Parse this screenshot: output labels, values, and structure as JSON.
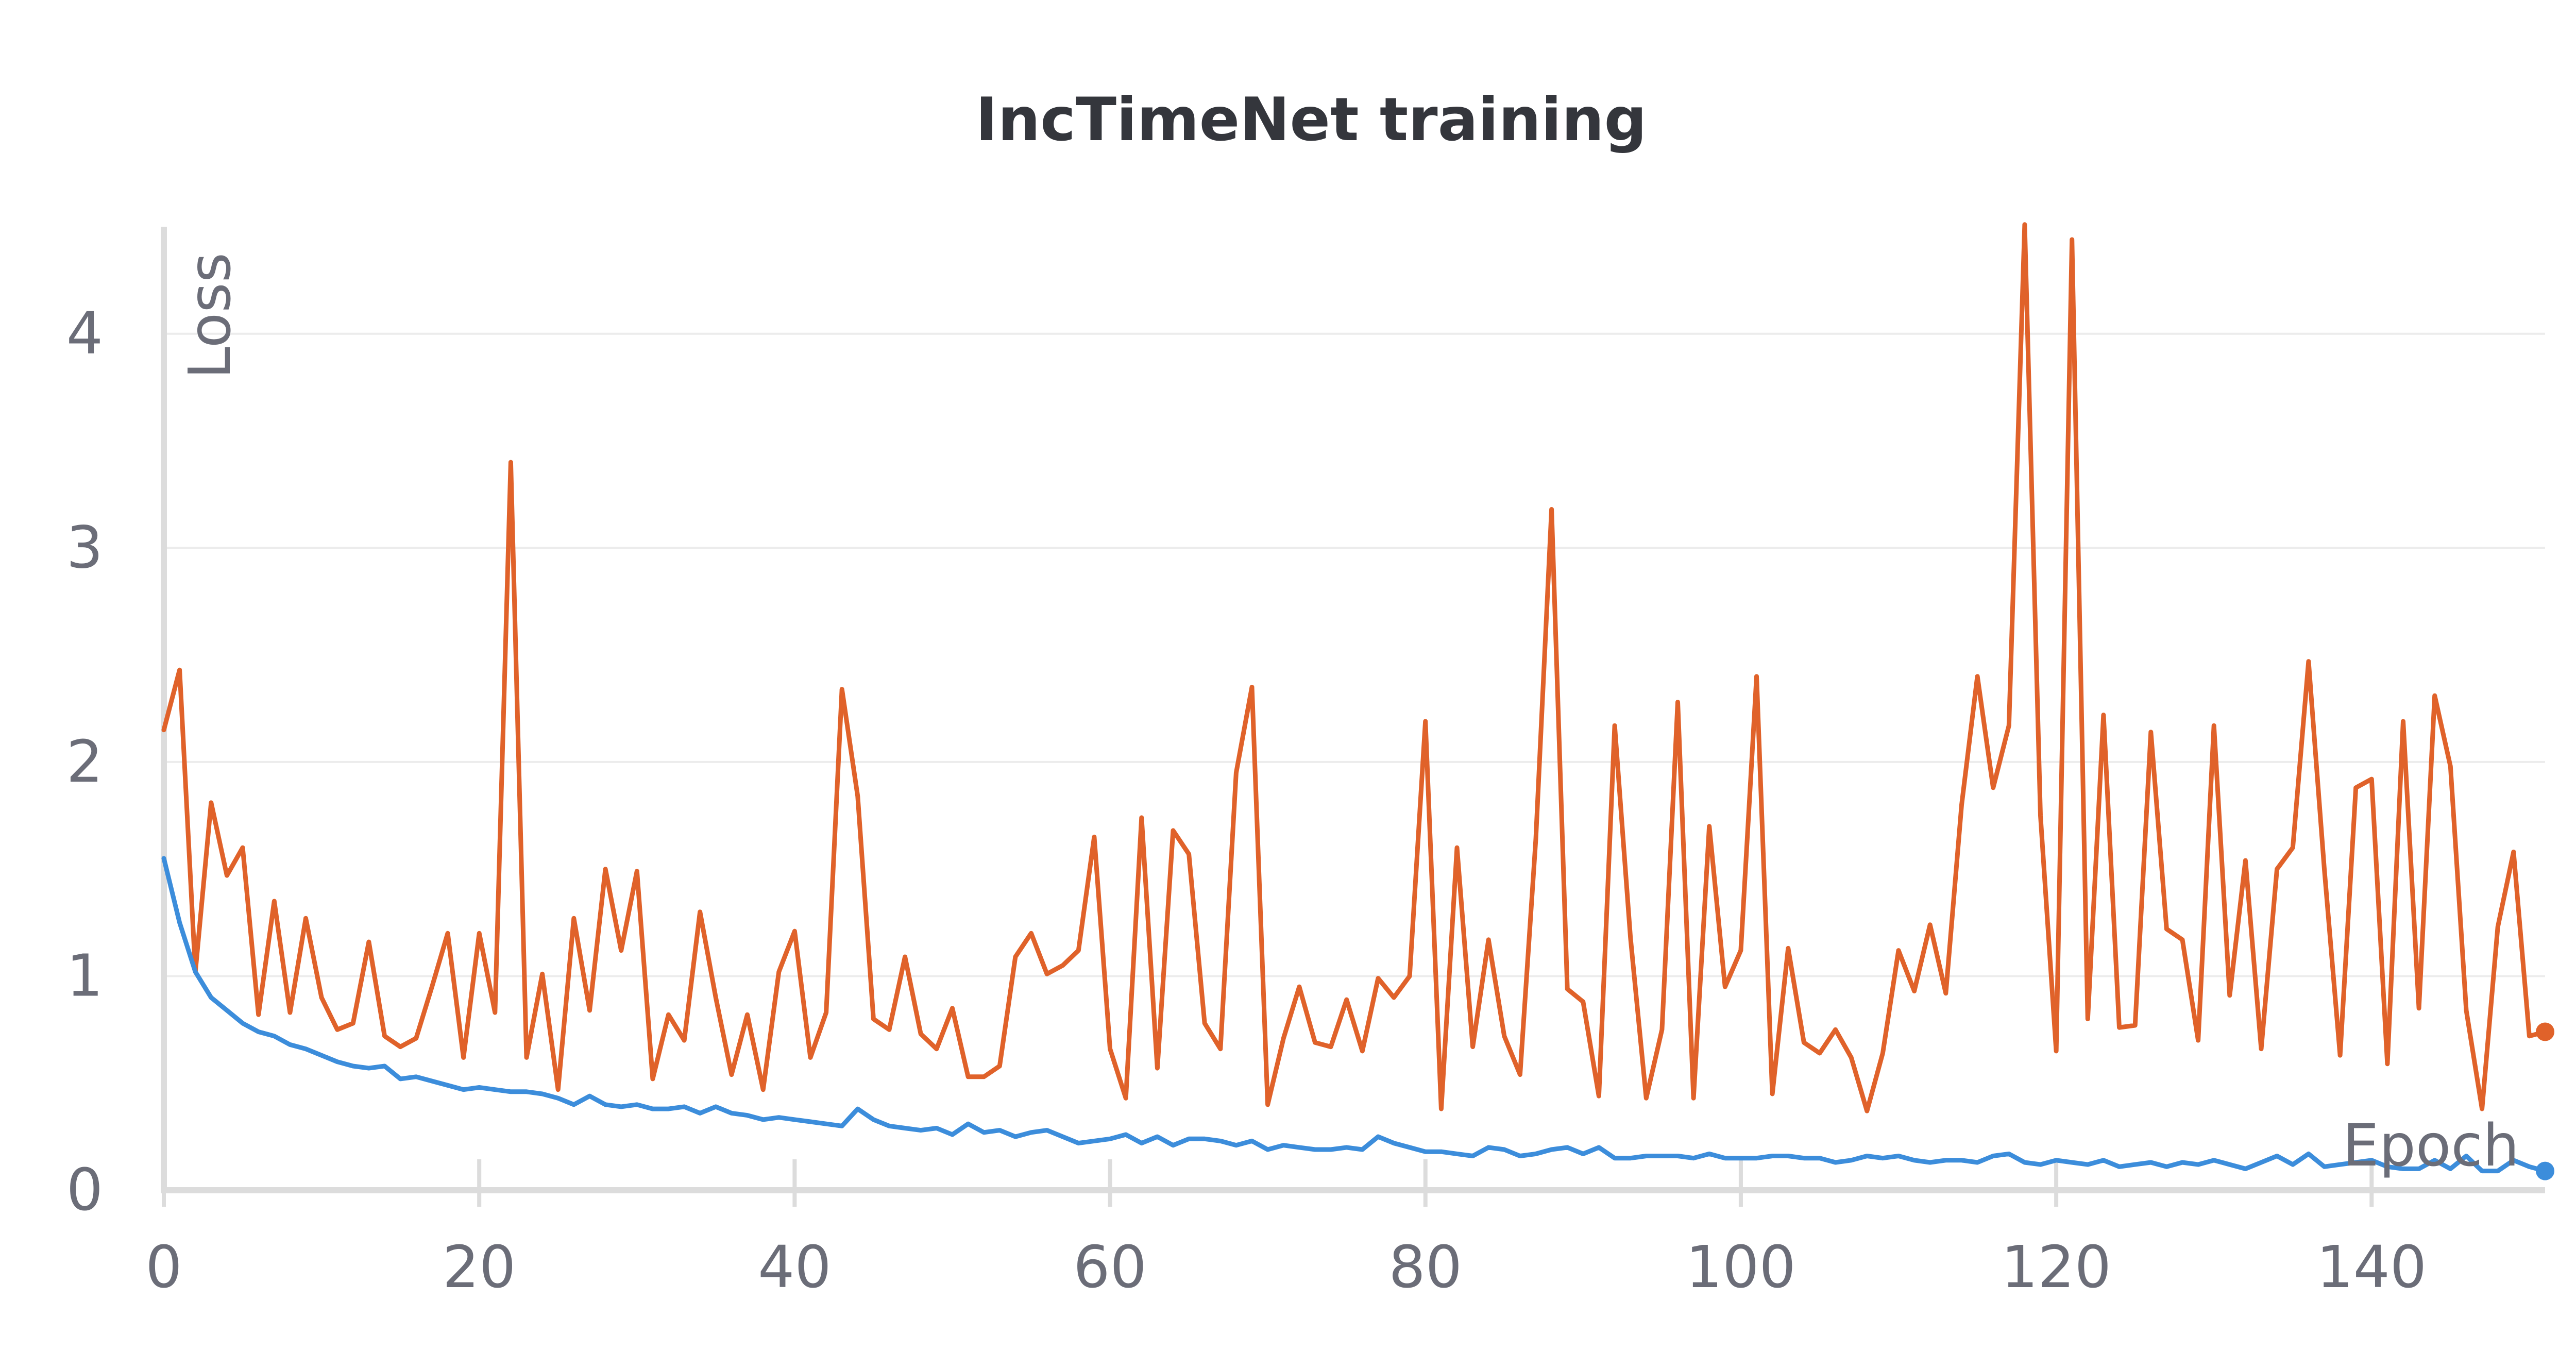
{
  "chart_data": {
    "type": "line",
    "title": "IncTimeNet training",
    "xlabel": "Epoch",
    "ylabel": "Loss",
    "xlim": [
      0,
      151
    ],
    "ylim": [
      0,
      4.5
    ],
    "xticks": [
      0,
      20,
      40,
      60,
      80,
      100,
      120,
      140
    ],
    "yticks": [
      0,
      1,
      2,
      3,
      4
    ],
    "grid": "horizontal",
    "legend": "none",
    "series": [
      {
        "color": "#e0622a",
        "x": [
          0,
          1,
          2,
          3,
          4,
          5,
          6,
          7,
          8,
          9,
          10,
          11,
          12,
          13,
          14,
          15,
          16,
          17,
          18,
          19,
          20,
          21,
          22,
          23,
          24,
          25,
          26,
          27,
          28,
          29,
          30,
          31,
          32,
          33,
          34,
          35,
          36,
          37,
          38,
          39,
          40,
          41,
          42,
          43,
          44,
          45,
          46,
          47,
          48,
          49,
          50,
          51,
          52,
          53,
          54,
          55,
          56,
          57,
          58,
          59,
          60,
          61,
          62,
          63,
          64,
          65,
          66,
          67,
          68,
          69,
          70,
          71,
          72,
          73,
          74,
          75,
          76,
          77,
          78,
          79,
          80,
          81,
          82,
          83,
          84,
          85,
          86,
          87,
          88,
          89,
          90,
          91,
          92,
          93,
          94,
          95,
          96,
          97,
          98,
          99,
          100,
          101,
          102,
          103,
          104,
          105,
          106,
          107,
          108,
          109,
          110,
          111,
          112,
          113,
          114,
          115,
          116,
          117,
          118,
          119,
          120,
          121,
          122,
          123,
          124,
          125,
          126,
          127,
          128,
          129,
          130,
          131,
          132,
          133,
          134,
          135,
          136,
          137,
          138,
          139,
          140,
          141,
          142,
          143,
          144,
          145,
          146,
          147,
          148,
          149,
          150,
          151
        ],
        "values": [
          2.15,
          2.43,
          1.02,
          1.81,
          1.47,
          1.6,
          0.82,
          1.35,
          0.83,
          1.27,
          0.9,
          0.75,
          0.78,
          1.16,
          0.72,
          0.67,
          0.71,
          0.95,
          1.2,
          0.62,
          1.2,
          0.83,
          3.4,
          0.62,
          1.01,
          0.47,
          1.27,
          0.84,
          1.5,
          1.12,
          1.49,
          0.52,
          0.82,
          0.7,
          1.3,
          0.9,
          0.54,
          0.82,
          0.47,
          1.02,
          1.21,
          0.62,
          0.83,
          2.34,
          1.84,
          0.8,
          0.75,
          1.09,
          0.73,
          0.66,
          0.85,
          0.53,
          0.53,
          0.58,
          1.09,
          1.2,
          1.01,
          1.05,
          1.12,
          1.65,
          0.66,
          0.43,
          1.74,
          0.57,
          1.68,
          1.57,
          0.78,
          0.66,
          1.95,
          2.35,
          0.4,
          0.71,
          0.95,
          0.69,
          0.67,
          0.89,
          0.65,
          0.99,
          0.9,
          1.0,
          2.19,
          0.38,
          1.6,
          0.67,
          1.17,
          0.72,
          0.54,
          1.64,
          3.18,
          0.94,
          0.88,
          0.44,
          2.17,
          1.18,
          0.43,
          0.75,
          2.28,
          0.43,
          1.7,
          0.95,
          1.12,
          2.4,
          0.45,
          1.13,
          0.69,
          0.64,
          0.75,
          0.62,
          0.37,
          0.64,
          1.12,
          0.93,
          1.24,
          0.92,
          1.8,
          2.4,
          1.88,
          2.17,
          4.51,
          1.75,
          0.65,
          4.44,
          0.8,
          2.22,
          0.76,
          0.77,
          2.14,
          1.22,
          1.17,
          0.7,
          2.17,
          0.91,
          1.54,
          0.66,
          1.5,
          1.6,
          2.47,
          1.5,
          0.63,
          1.88,
          1.92,
          0.59,
          2.19,
          0.85,
          2.31,
          1.98,
          0.84,
          0.38,
          1.23,
          1.58,
          0.72,
          0.74
        ]
      },
      {
        "color": "#3c8ddb",
        "x": [
          0,
          1,
          2,
          3,
          4,
          5,
          6,
          7,
          8,
          9,
          10,
          11,
          12,
          13,
          14,
          15,
          16,
          17,
          18,
          19,
          20,
          21,
          22,
          23,
          24,
          25,
          26,
          27,
          28,
          29,
          30,
          31,
          32,
          33,
          34,
          35,
          36,
          37,
          38,
          39,
          40,
          41,
          42,
          43,
          44,
          45,
          46,
          47,
          48,
          49,
          50,
          51,
          52,
          53,
          54,
          55,
          56,
          57,
          58,
          59,
          60,
          61,
          62,
          63,
          64,
          65,
          66,
          67,
          68,
          69,
          70,
          71,
          72,
          73,
          74,
          75,
          76,
          77,
          78,
          79,
          80,
          81,
          82,
          83,
          84,
          85,
          86,
          87,
          88,
          89,
          90,
          91,
          92,
          93,
          94,
          95,
          96,
          97,
          98,
          99,
          100,
          101,
          102,
          103,
          104,
          105,
          106,
          107,
          108,
          109,
          110,
          111,
          112,
          113,
          114,
          115,
          116,
          117,
          118,
          119,
          120,
          121,
          122,
          123,
          124,
          125,
          126,
          127,
          128,
          129,
          130,
          131,
          132,
          133,
          134,
          135,
          136,
          137,
          138,
          139,
          140,
          141,
          142,
          143,
          144,
          145,
          146,
          147,
          148,
          149,
          150,
          151
        ],
        "values": [
          1.55,
          1.25,
          1.02,
          0.9,
          0.84,
          0.78,
          0.74,
          0.72,
          0.68,
          0.66,
          0.63,
          0.6,
          0.58,
          0.57,
          0.58,
          0.52,
          0.53,
          0.51,
          0.49,
          0.47,
          0.48,
          0.47,
          0.46,
          0.46,
          0.45,
          0.43,
          0.4,
          0.44,
          0.4,
          0.39,
          0.4,
          0.38,
          0.38,
          0.39,
          0.36,
          0.39,
          0.36,
          0.35,
          0.33,
          0.34,
          0.33,
          0.32,
          0.31,
          0.3,
          0.38,
          0.33,
          0.3,
          0.29,
          0.28,
          0.29,
          0.26,
          0.31,
          0.27,
          0.28,
          0.25,
          0.27,
          0.28,
          0.25,
          0.22,
          0.23,
          0.24,
          0.26,
          0.22,
          0.25,
          0.21,
          0.24,
          0.24,
          0.23,
          0.21,
          0.23,
          0.19,
          0.21,
          0.2,
          0.19,
          0.19,
          0.2,
          0.19,
          0.25,
          0.22,
          0.2,
          0.18,
          0.18,
          0.17,
          0.16,
          0.2,
          0.19,
          0.16,
          0.17,
          0.19,
          0.2,
          0.17,
          0.2,
          0.15,
          0.15,
          0.16,
          0.16,
          0.16,
          0.15,
          0.17,
          0.15,
          0.15,
          0.15,
          0.16,
          0.16,
          0.15,
          0.15,
          0.13,
          0.14,
          0.16,
          0.15,
          0.16,
          0.14,
          0.13,
          0.14,
          0.14,
          0.13,
          0.16,
          0.17,
          0.13,
          0.12,
          0.14,
          0.13,
          0.12,
          0.14,
          0.11,
          0.12,
          0.13,
          0.11,
          0.13,
          0.12,
          0.14,
          0.12,
          0.1,
          0.13,
          0.16,
          0.12,
          0.17,
          0.11,
          0.12,
          0.13,
          0.14,
          0.11,
          0.1,
          0.1,
          0.14,
          0.1,
          0.16,
          0.09,
          0.09,
          0.14,
          0.11,
          0.09
        ]
      }
    ]
  }
}
